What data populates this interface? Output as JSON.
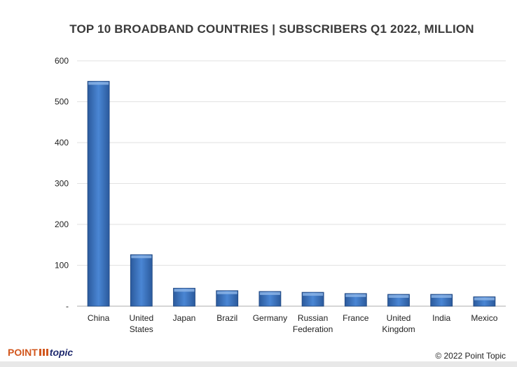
{
  "chart_data": {
    "type": "bar",
    "title": "TOP 10 BROADBAND COUNTRIES | SUBSCRIBERS Q1 2022, MILLION",
    "categories": [
      [
        "China"
      ],
      [
        "United",
        "States"
      ],
      [
        "Japan"
      ],
      [
        "Brazil"
      ],
      [
        "Germany"
      ],
      [
        "Russian",
        "Federation"
      ],
      [
        "France"
      ],
      [
        "United",
        "Kingdom"
      ],
      [
        "India"
      ],
      [
        "Mexico"
      ]
    ],
    "values": [
      550,
      126,
      44,
      38,
      36,
      34,
      31,
      29,
      29,
      23
    ],
    "xlabel": "",
    "ylabel": "",
    "ylim": [
      0,
      600
    ],
    "yticks": [
      0,
      100,
      200,
      300,
      400,
      500,
      600
    ],
    "ytick_labels": [
      "-",
      "100",
      "200",
      "300",
      "400",
      "500",
      "600"
    ],
    "grid": true,
    "bar_color": "#3a72c0"
  },
  "footer": {
    "logo_point": "POINT",
    "logo_topic": "topic",
    "copyright": "© 2022 Point Topic"
  }
}
